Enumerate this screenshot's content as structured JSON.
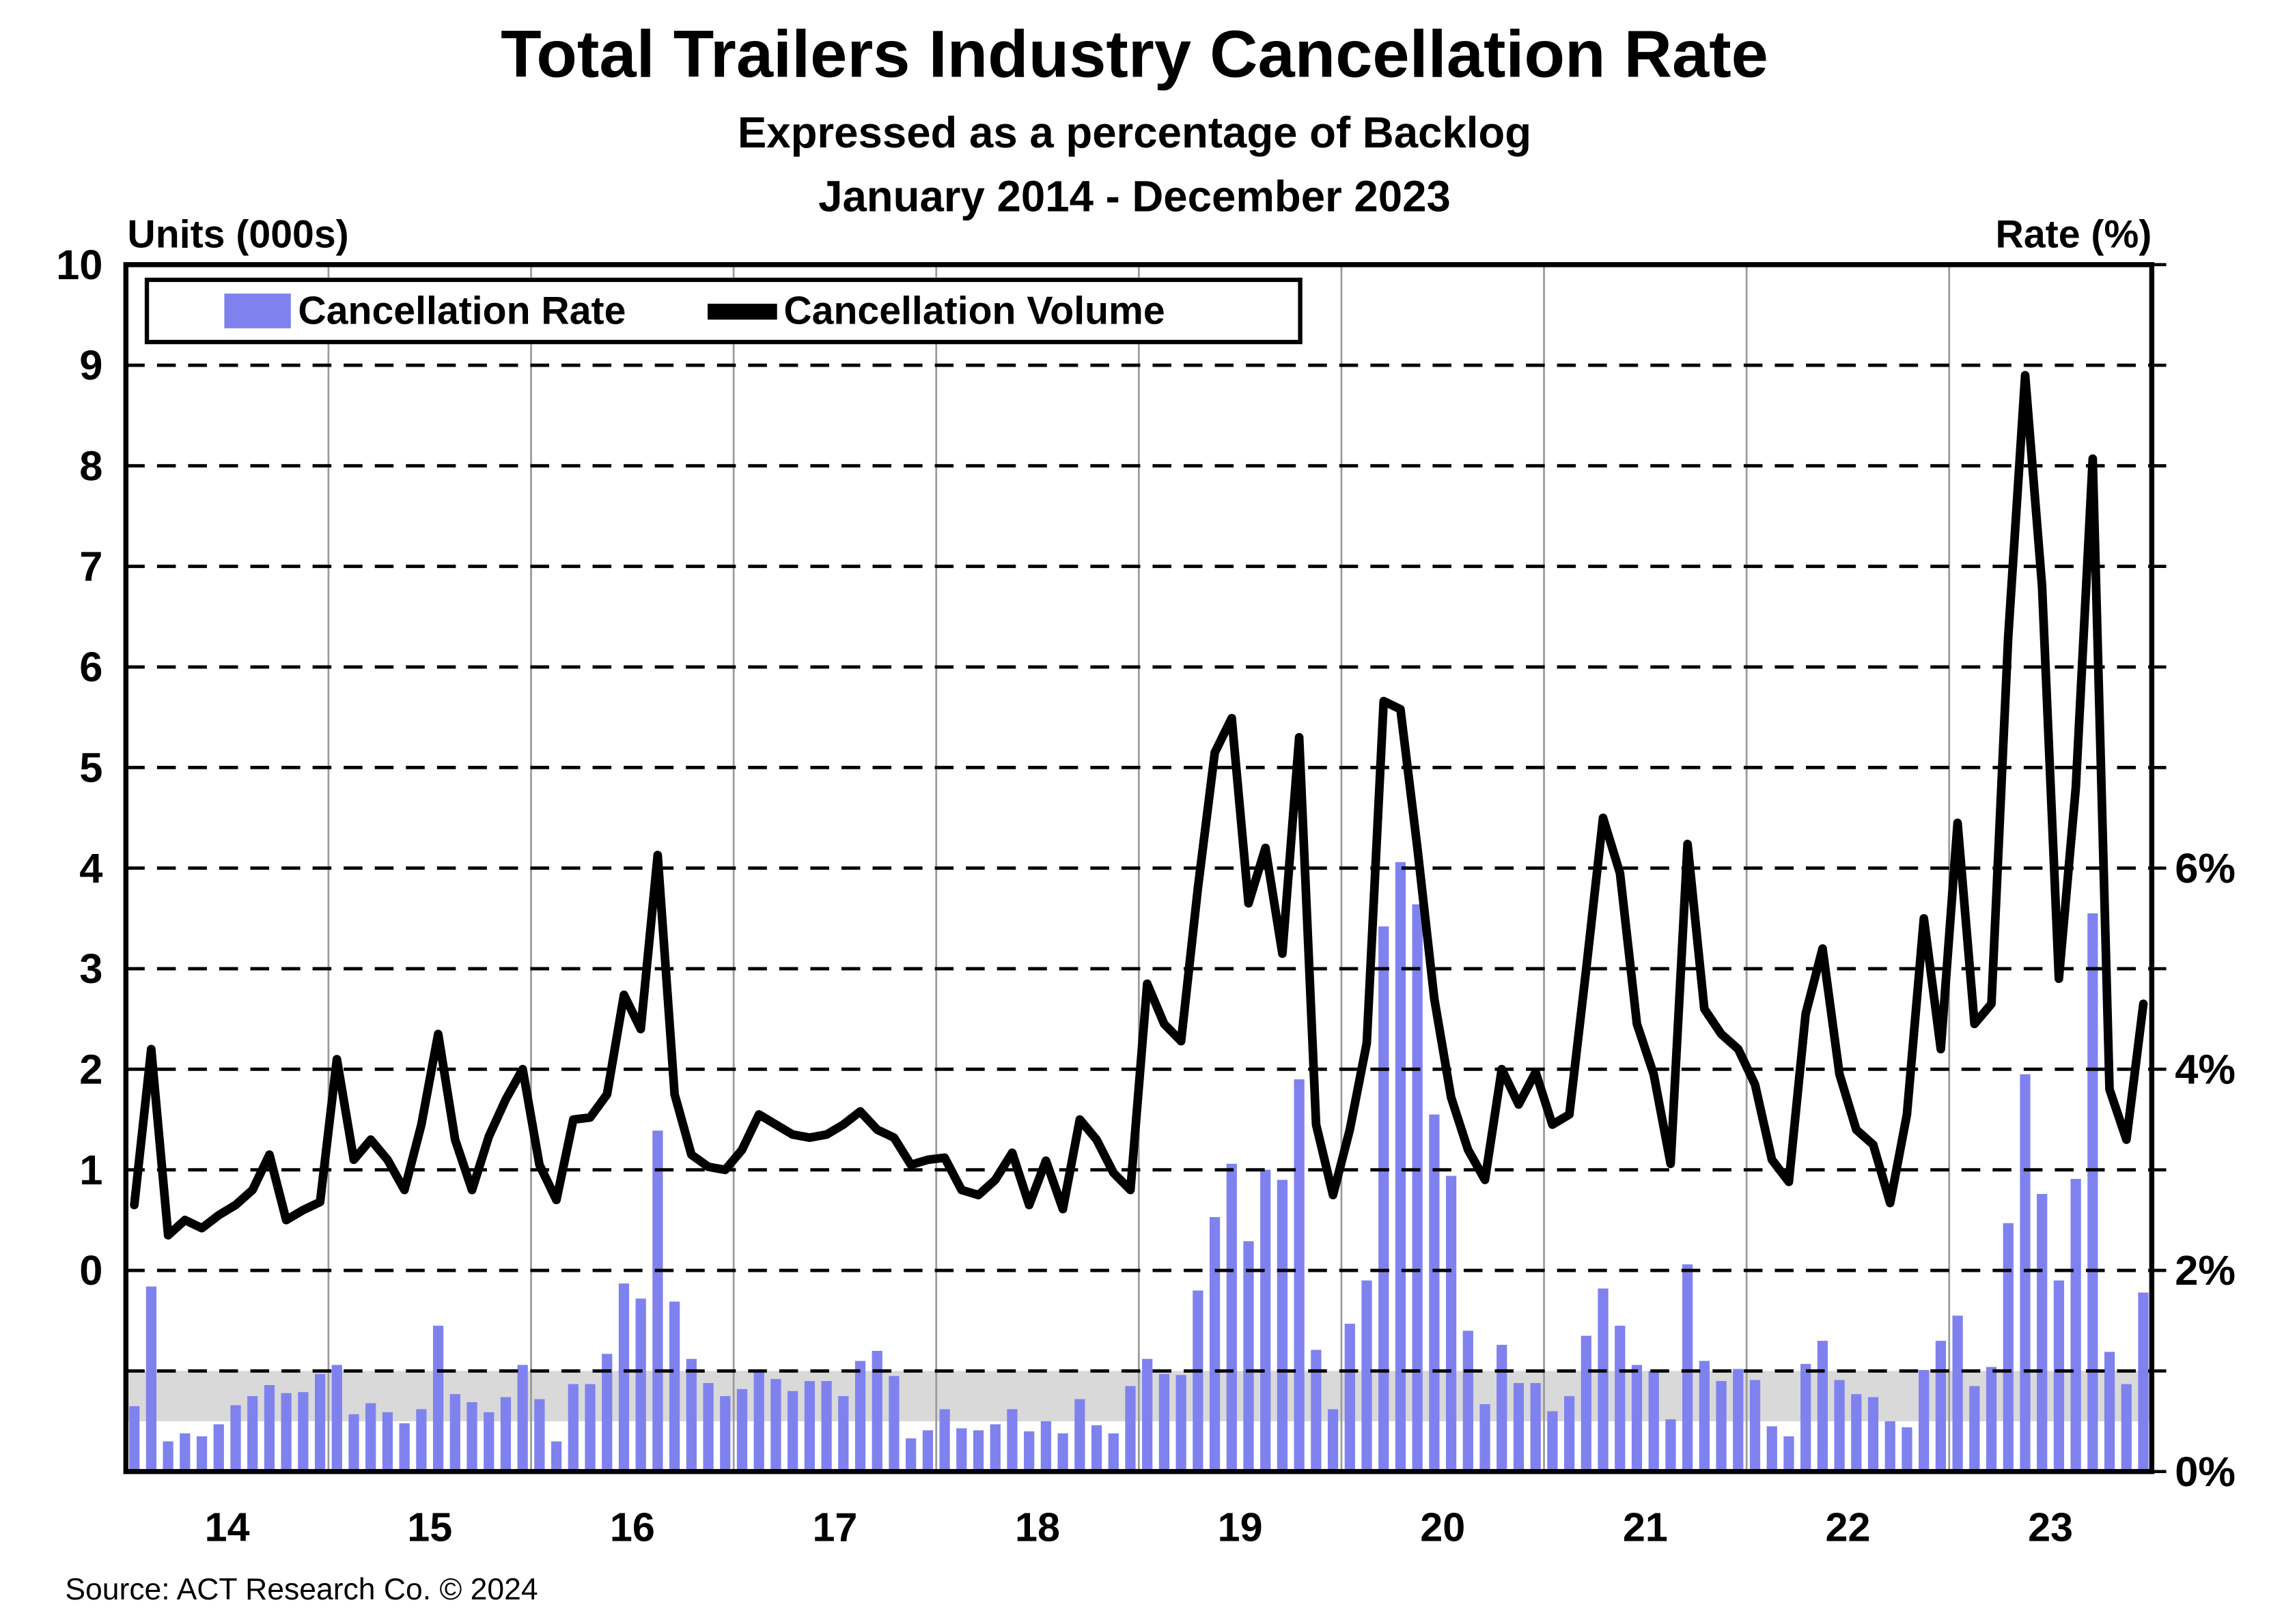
{
  "header": {
    "title": "Total Trailers Industry Cancellation Rate",
    "subtitle": "Expressed as a percentage of Backlog",
    "period": "January 2014 - December 2023"
  },
  "legend": {
    "rate_label": "Cancellation Rate",
    "volume_label": "Cancellation Volume"
  },
  "footer": {
    "source": "Source: ACT Research Co. © 2024"
  },
  "colors": {
    "bar": "#7f82ee",
    "line": "#000000",
    "band": "#d9d9d9",
    "year_separator": "#9b9b9b"
  },
  "chart_data": {
    "type": "bar",
    "subtype": "combo-bar-line-dual-axis",
    "title": "Total Trailers Industry Cancellation Rate",
    "x": {
      "unit": "month",
      "start": "2014-01",
      "end": "2023-12",
      "months": 120
    },
    "x_year_tick_labels": [
      "14",
      "15",
      "16",
      "17",
      "18",
      "19",
      "20",
      "21",
      "22",
      "23"
    ],
    "left_axis": {
      "label": "Units (000s)",
      "tick_values": [
        0,
        1,
        2,
        3,
        4,
        5,
        6,
        7,
        8,
        9,
        10
      ],
      "note_alignment": "left value u sits at same height as right (u+2)%"
    },
    "right_axis": {
      "label": "Rate (%)",
      "tick_labels": [
        "0%",
        "2%",
        "4%",
        "6%"
      ],
      "tick_values_pct": [
        0,
        2,
        4,
        6
      ],
      "minor_tick_step_pct": 1,
      "range_pct": [
        0,
        12
      ]
    },
    "gridlines": {
      "horizontal_dashed_at_pct": [
        1,
        2,
        3,
        4,
        5,
        6,
        7,
        8,
        9,
        10,
        11
      ],
      "vertical_year_separators": true
    },
    "band": {
      "from_pct": 0.5,
      "to_pct": 1.0,
      "color": "#d9d9d9"
    },
    "series": [
      {
        "name": "Cancellation Rate",
        "type": "bar",
        "axis": "right",
        "unit": "%",
        "color": "#7f82ee",
        "values": [
          0.65,
          1.84,
          0.3,
          0.38,
          0.35,
          0.47,
          0.66,
          0.75,
          0.86,
          0.78,
          0.79,
          0.97,
          1.06,
          0.57,
          0.68,
          0.59,
          0.48,
          0.62,
          1.45,
          0.77,
          0.69,
          0.59,
          0.74,
          1.06,
          0.72,
          0.3,
          0.87,
          0.87,
          1.17,
          1.87,
          1.72,
          3.39,
          1.69,
          1.12,
          0.88,
          0.75,
          0.82,
          1.0,
          0.92,
          0.8,
          0.9,
          0.9,
          0.75,
          1.1,
          1.2,
          0.95,
          0.33,
          0.41,
          0.62,
          0.43,
          0.41,
          0.47,
          0.62,
          0.4,
          0.5,
          0.38,
          0.72,
          0.46,
          0.38,
          0.85,
          1.12,
          0.97,
          0.96,
          1.8,
          2.53,
          3.06,
          2.29,
          3.0,
          2.9,
          3.9,
          1.21,
          0.62,
          1.47,
          1.9,
          5.42,
          6.06,
          5.64,
          3.55,
          2.94,
          1.4,
          0.67,
          1.26,
          0.88,
          0.88,
          0.6,
          0.75,
          1.35,
          1.82,
          1.45,
          1.06,
          1.0,
          0.52,
          2.06,
          1.1,
          0.9,
          1.02,
          0.91,
          0.45,
          0.35,
          1.07,
          1.3,
          0.91,
          0.77,
          0.74,
          0.5,
          0.44,
          1.01,
          1.3,
          1.55,
          0.85,
          1.04,
          2.47,
          3.95,
          2.76,
          1.9,
          2.91,
          5.55,
          1.19,
          0.87,
          1.78
        ]
      },
      {
        "name": "Cancellation Volume",
        "type": "line",
        "axis": "left",
        "unit": "thousands of units",
        "color": "#000000",
        "values": [
          0.65,
          2.2,
          0.35,
          0.5,
          0.42,
          0.55,
          0.65,
          0.8,
          1.15,
          0.5,
          0.6,
          0.68,
          2.1,
          1.1,
          1.3,
          1.1,
          0.8,
          1.45,
          2.35,
          1.3,
          0.8,
          1.33,
          1.7,
          2.0,
          1.05,
          0.7,
          1.5,
          1.52,
          1.75,
          2.74,
          2.4,
          4.13,
          1.75,
          1.15,
          1.03,
          1.0,
          1.2,
          1.55,
          1.45,
          1.35,
          1.32,
          1.35,
          1.45,
          1.58,
          1.4,
          1.32,
          1.05,
          1.1,
          1.12,
          0.8,
          0.75,
          0.9,
          1.17,
          0.65,
          1.09,
          0.61,
          1.5,
          1.3,
          0.97,
          0.8,
          2.85,
          2.45,
          2.28,
          3.8,
          5.15,
          5.49,
          3.65,
          4.2,
          3.15,
          5.3,
          1.45,
          0.75,
          1.4,
          2.26,
          5.66,
          5.58,
          4.2,
          2.7,
          1.72,
          1.2,
          0.9,
          2.0,
          1.65,
          1.97,
          1.45,
          1.55,
          3.0,
          4.5,
          3.95,
          2.45,
          1.95,
          1.06,
          4.24,
          2.6,
          2.35,
          2.2,
          1.85,
          1.1,
          0.88,
          2.55,
          3.2,
          1.95,
          1.4,
          1.25,
          0.67,
          1.55,
          3.5,
          2.2,
          4.45,
          2.45,
          2.65,
          6.3,
          8.9,
          6.8,
          2.9,
          4.8,
          8.07,
          1.8,
          1.3,
          2.65
        ]
      }
    ]
  }
}
